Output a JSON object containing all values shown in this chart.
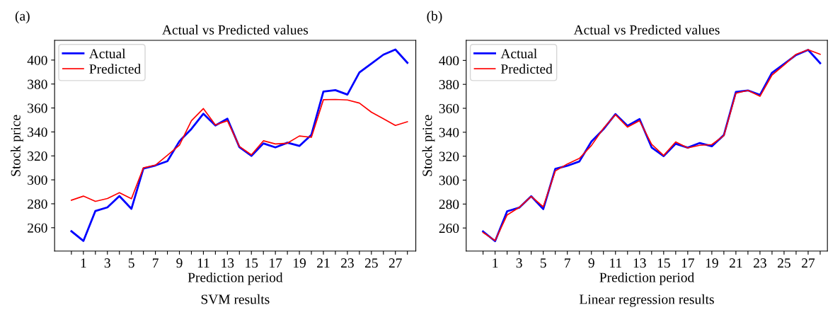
{
  "chart_data": [
    {
      "type": "line",
      "title": "Actual vs Predicted values",
      "xlabel": "Prediction period",
      "ylabel": "Stock price",
      "annotations": [
        "(a)",
        "SVM results"
      ],
      "x": [
        0,
        1,
        2,
        3,
        4,
        5,
        6,
        7,
        8,
        9,
        10,
        11,
        12,
        13,
        14,
        15,
        16,
        17,
        18,
        19,
        20,
        21,
        22,
        23,
        24,
        25,
        26,
        27,
        28
      ],
      "series": [
        {
          "name": "Actual",
          "color": "#0000ff",
          "values": [
            257.1,
            249,
            274,
            277,
            286.5,
            275.8,
            309.4,
            312,
            315.6,
            332.2,
            342.5,
            355.2,
            345.4,
            351,
            327.3,
            320,
            330.4,
            327.1,
            331,
            328.3,
            337.6,
            373.7,
            374.9,
            371.2,
            389.7,
            397.1,
            404.5,
            408.8,
            397.7
          ]
        },
        {
          "name": "Predicted",
          "color": "#ff0000",
          "values": [
            283,
            286.4,
            282,
            284.4,
            289.3,
            284.2,
            310,
            312.3,
            320.5,
            328.9,
            349.3,
            359.5,
            345.8,
            349.3,
            327.9,
            320.9,
            332.6,
            330,
            330.6,
            336.6,
            335.5,
            366.9,
            367.1,
            366.7,
            364.1,
            356.5,
            351,
            345.4,
            348.5
          ]
        }
      ],
      "xlim": [
        -1.4,
        28.7
      ],
      "ylim": [
        240.5,
        416.5
      ],
      "xticks": [
        {
          "value": 0,
          "label": null
        },
        1,
        {
          "value": 2,
          "label": null
        },
        3,
        {
          "value": 4,
          "label": null
        },
        5,
        {
          "value": 6,
          "label": null
        },
        7,
        {
          "value": 8,
          "label": null
        },
        9,
        {
          "value": 10,
          "label": null
        },
        11,
        {
          "value": 12,
          "label": null
        },
        13,
        {
          "value": 14,
          "label": null
        },
        15,
        {
          "value": 16,
          "label": null
        },
        17,
        {
          "value": 18,
          "label": null
        },
        19,
        {
          "value": 20,
          "label": null
        },
        21,
        {
          "value": 22,
          "label": null
        },
        23,
        {
          "value": 24,
          "label": null
        },
        25,
        {
          "value": 26,
          "label": null
        },
        27,
        {
          "value": 28,
          "label": null
        }
      ],
      "yticks": [
        260,
        280,
        300,
        320,
        340,
        360,
        380,
        400
      ],
      "grid": false,
      "legend": "top left",
      "marker": "none",
      "line_style": "solid"
    },
    {
      "type": "line",
      "title": "Actual vs Predicted values",
      "xlabel": "Prediction period",
      "ylabel": "Stock price",
      "annotations": [
        "(b)",
        "Linear regression results"
      ],
      "x": [
        0,
        1,
        2,
        3,
        4,
        5,
        6,
        7,
        8,
        9,
        10,
        11,
        12,
        13,
        14,
        15,
        16,
        17,
        18,
        19,
        20,
        21,
        22,
        23,
        24,
        25,
        26,
        27,
        28
      ],
      "series": [
        {
          "name": "Actual",
          "color": "#0000ff",
          "values": [
            257.1,
            249,
            274,
            277,
            286.5,
            275.8,
            309.4,
            312,
            315.6,
            332.2,
            342.5,
            355.2,
            345.4,
            351,
            327.3,
            320,
            330.4,
            327.1,
            331,
            328.3,
            337.6,
            373.7,
            374.9,
            371.2,
            389.7,
            397.1,
            404.5,
            408.8,
            397.7
          ]
        },
        {
          "name": "Predicted",
          "color": "#ff0000",
          "values": [
            256.2,
            249.5,
            270.9,
            277.2,
            286.3,
            277.8,
            307.6,
            313.5,
            318.2,
            328.9,
            343.3,
            354.6,
            344.3,
            349.6,
            329.9,
            320.6,
            331.9,
            326.9,
            329.1,
            329.7,
            337.2,
            372.6,
            374.9,
            370,
            387.8,
            396.1,
            405.1,
            408.9,
            405.1
          ]
        }
      ],
      "xlim": [
        -1.4,
        28.6
      ],
      "ylim": [
        240.7,
        416.8
      ],
      "xticks": [
        {
          "value": 0,
          "label": null
        },
        1,
        {
          "value": 2,
          "label": null
        },
        3,
        {
          "value": 4,
          "label": null
        },
        5,
        {
          "value": 6,
          "label": null
        },
        7,
        {
          "value": 8,
          "label": null
        },
        9,
        {
          "value": 10,
          "label": null
        },
        11,
        {
          "value": 12,
          "label": null
        },
        13,
        {
          "value": 14,
          "label": null
        },
        15,
        {
          "value": 16,
          "label": null
        },
        17,
        {
          "value": 18,
          "label": null
        },
        19,
        {
          "value": 20,
          "label": null
        },
        21,
        {
          "value": 22,
          "label": null
        },
        23,
        {
          "value": 24,
          "label": null
        },
        25,
        {
          "value": 26,
          "label": null
        },
        27,
        {
          "value": 28,
          "label": null
        }
      ],
      "yticks": [
        260,
        280,
        300,
        320,
        340,
        360,
        380,
        400
      ],
      "grid": false,
      "legend": "top left",
      "marker": "none",
      "line_style": "solid"
    }
  ]
}
